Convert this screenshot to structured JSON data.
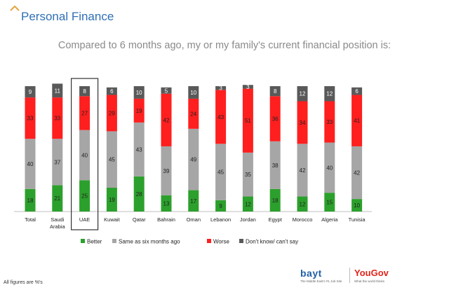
{
  "page": {
    "title": "Personal Finance",
    "footnote": "All figures are %'s"
  },
  "logos": {
    "bayt": "bayt",
    "bayt_tagline": "The Middle East's #1 Job Site",
    "yougov": "YouGov",
    "yougov_tagline": "What the world thinks"
  },
  "colors": {
    "better": "#2ca02c",
    "same": "#a6a6a6",
    "worse": "#ff1f1f",
    "dont_know": "#595959",
    "title": "#2f6fb5",
    "highlight_box": "#333333"
  },
  "chart_data": {
    "type": "bar",
    "stacked": true,
    "percent": true,
    "title": "Compared to 6 months ago, my or my family's current financial position is:",
    "categories": [
      "Total",
      "Saudi Arabia",
      "UAE",
      "Kuwait",
      "Qatar",
      "Bahrain",
      "Oman",
      "Lebanon",
      "Jordan",
      "Egypt",
      "Morocco",
      "Algeria",
      "Tunisia"
    ],
    "highlighted_category": "UAE",
    "series": [
      {
        "name": "Better",
        "color": "#2ca02c",
        "values": [
          18,
          21,
          25,
          19,
          28,
          13,
          17,
          9,
          12,
          18,
          12,
          15,
          10
        ]
      },
      {
        "name": "Same as six months ago",
        "color": "#a6a6a6",
        "values": [
          40,
          37,
          40,
          45,
          43,
          39,
          49,
          45,
          35,
          38,
          42,
          40,
          42
        ]
      },
      {
        "name": "Worse",
        "color": "#ff1f1f",
        "values": [
          33,
          33,
          27,
          29,
          19,
          42,
          24,
          43,
          51,
          36,
          34,
          33,
          41
        ]
      },
      {
        "name": "Don't know/ can't say",
        "color": "#595959",
        "values": [
          9,
          11,
          8,
          6,
          10,
          5,
          10,
          3,
          3,
          8,
          12,
          12,
          6
        ]
      }
    ],
    "ylim": [
      0,
      100
    ],
    "legend": "bottom",
    "grid": false
  }
}
